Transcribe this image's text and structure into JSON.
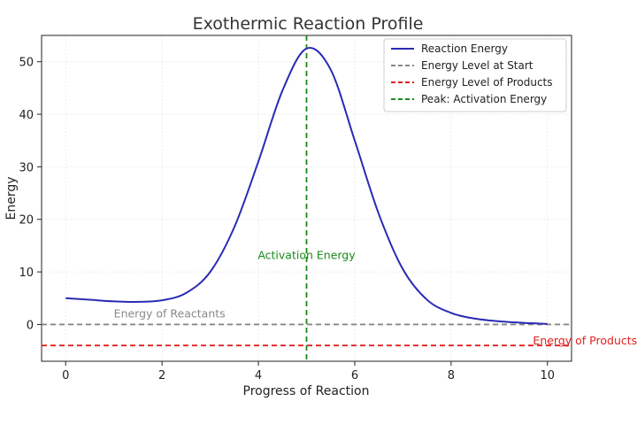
{
  "chart_data": {
    "type": "line",
    "title": "Exothermic Reaction Profile",
    "xlabel": "Progress of Reaction",
    "ylabel": "Energy",
    "xlim": [
      -0.5,
      10.5
    ],
    "ylim": [
      -7,
      55
    ],
    "xticks": [
      0,
      2,
      4,
      6,
      8,
      10
    ],
    "yticks": [
      0,
      10,
      20,
      30,
      40,
      50
    ],
    "grid": true,
    "legend_position": "top-right",
    "series": [
      {
        "name": "Reaction Energy",
        "color": "#2b2bb5",
        "style": "solid",
        "x": [
          0,
          0.5,
          1,
          1.5,
          2,
          2.5,
          3,
          3.5,
          4,
          4.5,
          5,
          5.5,
          6,
          6.5,
          7,
          7.5,
          8,
          8.5,
          9,
          9.5,
          10
        ],
        "y": [
          5.0,
          4.7,
          4.4,
          4.3,
          4.6,
          6.0,
          10.0,
          18.5,
          31.0,
          44.5,
          52.5,
          48.5,
          35.0,
          21.0,
          10.5,
          4.7,
          2.2,
          1.1,
          0.6,
          0.3,
          0.1
        ]
      },
      {
        "name": "Energy Level at Start",
        "color": "#888888",
        "style": "dashed",
        "orientation": "horizontal",
        "value": 0
      },
      {
        "name": "Energy Level of Products",
        "color": "#e02020",
        "style": "dashed",
        "orientation": "horizontal",
        "value": -4
      },
      {
        "name": "Peak: Activation Energy",
        "color": "#1a8a1a",
        "style": "dashed",
        "orientation": "vertical",
        "value": 5
      }
    ],
    "annotations": [
      {
        "text": "Activation Energy",
        "x": 5,
        "y": 12.5,
        "color": "#1a8a1a",
        "anchor": "middle"
      },
      {
        "text": "Energy of Reactants",
        "x": 1,
        "y": 1.3,
        "color": "#888888",
        "anchor": "start"
      },
      {
        "text": "Energy of Products",
        "x": 9.7,
        "y": -3.8,
        "color": "#e02020",
        "anchor": "start"
      }
    ]
  }
}
